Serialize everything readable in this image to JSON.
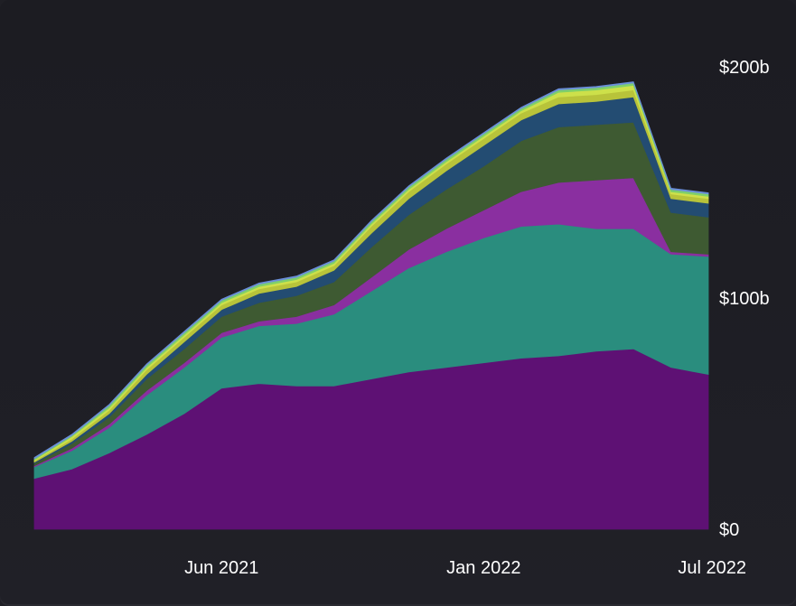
{
  "chart_data": {
    "type": "area",
    "stacked": true,
    "title": "",
    "xlabel": "",
    "ylabel": "",
    "grid": false,
    "legend": "none",
    "ylim": [
      0,
      200
    ],
    "y_ticks": [
      {
        "value": 0,
        "label": "$0"
      },
      {
        "value": 100,
        "label": "$100b"
      },
      {
        "value": 200,
        "label": "$200b"
      }
    ],
    "x_ticks": [
      {
        "value": "2021-06",
        "label": "Jun 2021"
      },
      {
        "value": "2022-01",
        "label": "Jan 2022"
      },
      {
        "value": "2022-07",
        "label": "Jul 2022"
      }
    ],
    "x": [
      "2021-01",
      "2021-02",
      "2021-03",
      "2021-04",
      "2021-05",
      "2021-06",
      "2021-07",
      "2021-08",
      "2021-09",
      "2021-10",
      "2021-11",
      "2021-12",
      "2022-01",
      "2022-02",
      "2022-03",
      "2022-04",
      "2022-05",
      "2022-06",
      "2022-07"
    ],
    "series": [
      {
        "color": "#5e1174",
        "values": [
          22,
          26,
          33,
          41,
          50,
          61,
          63,
          62,
          62,
          65,
          68,
          70,
          72,
          74,
          75,
          77,
          78,
          70,
          67
        ]
      },
      {
        "color": "#2a8d7e",
        "values": [
          5,
          8,
          11,
          17,
          20,
          22,
          25,
          27,
          31,
          38,
          45,
          50,
          54,
          57,
          57,
          53,
          52,
          49,
          51
        ]
      },
      {
        "color": "#8a2fa0",
        "values": [
          0.5,
          1,
          1.5,
          2,
          2,
          2,
          2,
          3,
          4,
          6,
          8,
          10,
          12,
          15,
          18,
          21,
          22,
          1,
          1
        ]
      },
      {
        "color": "#3e5a32",
        "values": [
          1,
          2,
          3,
          5,
          6,
          7,
          8,
          9,
          10,
          13,
          15,
          17,
          19,
          22,
          24,
          24,
          24,
          17,
          16
        ]
      },
      {
        "color": "#234c72",
        "values": [
          0.5,
          1,
          1.5,
          2,
          3,
          3,
          4,
          4,
          5,
          6,
          7,
          8,
          9,
          9,
          10,
          10,
          11,
          6,
          6
        ]
      },
      {
        "color": "#b8c33a",
        "values": [
          0.5,
          1,
          1.5,
          2,
          2,
          2,
          2,
          2,
          2,
          3,
          3,
          3,
          3,
          3,
          3,
          3,
          3,
          2,
          2
        ]
      },
      {
        "color": "#cde04a",
        "values": [
          0.5,
          1,
          1,
          1,
          1,
          1,
          1,
          1,
          1,
          1,
          1,
          1,
          1,
          1,
          2,
          2,
          2,
          1,
          1
        ]
      },
      {
        "color": "#7fcf6a",
        "values": [
          0.5,
          0.5,
          1,
          1,
          1,
          1,
          1,
          1,
          1,
          1,
          1,
          1,
          1,
          1,
          1,
          1,
          1,
          1,
          1
        ]
      },
      {
        "color": "#6a8fd8",
        "values": [
          0.5,
          0.5,
          0.5,
          0.5,
          0.5,
          0.5,
          0.5,
          0.5,
          0.5,
          0.5,
          0.5,
          0.5,
          0.5,
          0.5,
          0.5,
          0.5,
          0.5,
          0.5,
          0.5
        ]
      }
    ]
  }
}
